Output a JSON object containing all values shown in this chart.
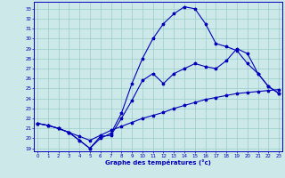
{
  "xlabel": "Graphe des températures (°c)",
  "bg_color": "#cce8e8",
  "line_color": "#0000bb",
  "grid_color": "#99cccc",
  "yticks": [
    19,
    20,
    21,
    22,
    23,
    24,
    25,
    26,
    27,
    28,
    29,
    30,
    31,
    32,
    33
  ],
  "xticks": [
    0,
    1,
    2,
    3,
    4,
    5,
    6,
    7,
    8,
    9,
    10,
    11,
    12,
    13,
    14,
    15,
    16,
    17,
    18,
    19,
    20,
    21,
    22,
    23
  ],
  "series1_x": [
    0,
    1,
    2,
    3,
    4,
    5,
    6,
    7,
    8,
    9,
    10,
    11,
    12,
    13,
    14,
    15,
    16,
    17,
    18,
    19,
    20,
    21,
    22,
    23
  ],
  "series1_y": [
    21.5,
    21.3,
    21.0,
    20.6,
    20.2,
    19.8,
    20.3,
    20.8,
    21.2,
    21.6,
    22.0,
    22.3,
    22.6,
    23.0,
    23.3,
    23.6,
    23.9,
    24.1,
    24.3,
    24.5,
    24.6,
    24.7,
    24.8,
    24.9
  ],
  "series2_x": [
    0,
    1,
    2,
    3,
    4,
    5,
    6,
    7,
    8,
    9,
    10,
    11,
    12,
    13,
    14,
    15,
    16,
    17,
    18,
    19,
    20,
    21,
    22,
    23
  ],
  "series2_y": [
    21.5,
    21.3,
    21.0,
    20.6,
    19.8,
    19.0,
    20.0,
    20.5,
    22.5,
    25.5,
    28.0,
    30.0,
    31.5,
    32.5,
    33.2,
    33.0,
    31.5,
    29.5,
    29.2,
    28.8,
    27.5,
    26.5,
    25.2,
    24.5
  ],
  "series3_x": [
    0,
    1,
    2,
    3,
    4,
    5,
    6,
    7,
    8,
    9,
    10,
    11,
    12,
    13,
    14,
    15,
    16,
    17,
    18,
    19,
    20,
    21,
    22,
    23
  ],
  "series3_y": [
    21.5,
    21.3,
    21.0,
    20.6,
    19.8,
    19.0,
    20.2,
    20.3,
    22.0,
    23.8,
    25.8,
    26.5,
    25.5,
    26.5,
    27.0,
    27.5,
    27.2,
    27.0,
    27.8,
    29.0,
    28.5,
    26.5,
    25.2,
    24.5
  ]
}
